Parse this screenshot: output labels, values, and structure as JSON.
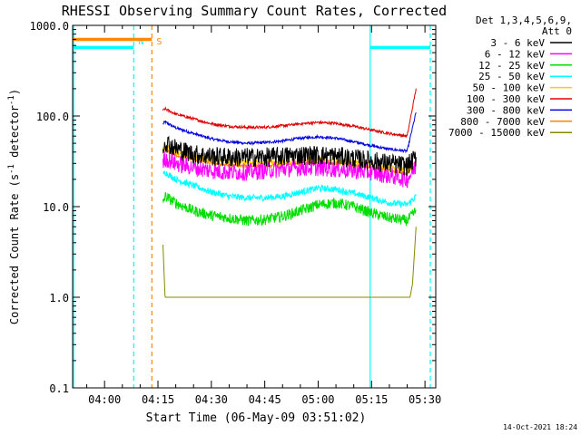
{
  "chart_data": {
    "type": "line",
    "title": "RHESSI Observing Summary Count Rates, Corrected",
    "xlabel": "Start Time (06-May-09 03:51:02)",
    "ylabel_prefix": "Corrected Count Rate (s",
    "ylabel_sup": "-1",
    "ylabel_mid": " detector",
    "ylabel_sup2": "-1",
    "ylabel_suffix": ")",
    "yscale": "log",
    "ylim": [
      0.1,
      1000
    ],
    "xlim_minutes": [
      231.03,
      333.03
    ],
    "x_ticks": [
      {
        "label": "04:00",
        "minutes": 240
      },
      {
        "label": "04:15",
        "minutes": 255
      },
      {
        "label": "04:30",
        "minutes": 270
      },
      {
        "label": "04:45",
        "minutes": 285
      },
      {
        "label": "05:00",
        "minutes": 300
      },
      {
        "label": "05:15",
        "minutes": 315
      },
      {
        "label": "05:30",
        "minutes": 330
      }
    ],
    "y_ticks": [
      {
        "label": "0.1",
        "value": 0.1
      },
      {
        "label": "1.0",
        "value": 1
      },
      {
        "label": "10.0",
        "value": 10
      },
      {
        "label": "100.0",
        "value": 100
      },
      {
        "label": "1000.0",
        "value": 1000
      }
    ],
    "legend_header": [
      "Det 1,3,4,5,6,9,",
      "Att 0"
    ],
    "legend_position": "right",
    "series": [
      {
        "name": "3 - 6 keV",
        "color": "#000000",
        "noise": 0.18,
        "x": [
          256.4,
          257,
          260,
          265,
          270,
          275,
          280,
          285,
          290,
          295,
          300,
          305,
          310,
          315,
          320,
          325,
          327.5
        ],
        "y": [
          46,
          52,
          44,
          38,
          36,
          35,
          35,
          35,
          36,
          37,
          37,
          36,
          34,
          32,
          30,
          28,
          35
        ]
      },
      {
        "name": "6 - 12 keV",
        "color": "#ff00ff",
        "noise": 0.16,
        "x": [
          256.4,
          257,
          260,
          265,
          270,
          275,
          280,
          285,
          290,
          295,
          300,
          305,
          310,
          315,
          320,
          325,
          327.5
        ],
        "y": [
          30,
          34,
          30,
          27,
          25,
          24,
          24,
          25,
          26,
          27,
          27,
          26,
          25,
          24,
          22,
          20,
          28
        ]
      },
      {
        "name": "12 - 25 keV",
        "color": "#00dd00",
        "noise": 0.1,
        "x": [
          256.4,
          257,
          260,
          265,
          270,
          275,
          280,
          285,
          290,
          295,
          300,
          305,
          310,
          315,
          320,
          325,
          327.5
        ],
        "y": [
          11,
          13,
          11,
          9,
          8,
          7.5,
          7,
          7.2,
          7.8,
          9,
          10.5,
          11,
          10,
          8.5,
          7.5,
          7,
          9
        ]
      },
      {
        "name": "25 - 50 keV",
        "color": "#00ffff",
        "noise": 0.06,
        "x": [
          256.4,
          257,
          260,
          265,
          270,
          275,
          280,
          285,
          290,
          295,
          300,
          305,
          310,
          315,
          320,
          325,
          327.5
        ],
        "y": [
          22,
          24,
          20,
          17,
          14.5,
          13,
          12.5,
          12.5,
          13,
          14.5,
          16,
          15.5,
          14,
          12.5,
          11,
          10.5,
          13
        ]
      },
      {
        "name": "50 - 100 keV",
        "color": "#ffcc00",
        "noise": 0.05,
        "x": [
          256.4,
          257,
          260,
          265,
          270,
          275,
          280,
          285,
          290,
          295,
          300,
          305,
          310,
          315,
          320,
          325,
          327.5
        ],
        "y": [
          44,
          47,
          40,
          36,
          33,
          31.5,
          31,
          31,
          31,
          32,
          33,
          32,
          31,
          29,
          27,
          25,
          30
        ]
      },
      {
        "name": "100 - 300 keV",
        "color": "#dd0000",
        "noise": 0.025,
        "x": [
          256.4,
          257,
          260,
          265,
          270,
          275,
          280,
          285,
          290,
          295,
          300,
          305,
          310,
          315,
          320,
          325,
          327.5
        ],
        "y": [
          115,
          120,
          105,
          93,
          82,
          77,
          75,
          75,
          78,
          82,
          85,
          83,
          77,
          70,
          64,
          60,
          200
        ]
      },
      {
        "name": "300 - 800 keV",
        "color": "#0000dd",
        "noise": 0.025,
        "x": [
          256.4,
          257,
          260,
          265,
          270,
          275,
          280,
          285,
          290,
          295,
          300,
          305,
          310,
          315,
          320,
          325,
          327.5
        ],
        "y": [
          82,
          86,
          74,
          64,
          56,
          52,
          50,
          51,
          53,
          57,
          59,
          57,
          52,
          47,
          43,
          41,
          110
        ]
      },
      {
        "name": "800 - 7000 keV",
        "color": "#ff8800",
        "noise": 0.03,
        "x": [
          256.4,
          257,
          260,
          265,
          270,
          275,
          280,
          285,
          290,
          295,
          300,
          305,
          310,
          315,
          320,
          325,
          327.5
        ],
        "y": [
          40,
          43,
          37,
          33,
          30,
          28.5,
          28,
          28,
          29,
          30,
          31,
          30,
          28.5,
          27,
          25,
          23,
          32
        ]
      },
      {
        "name": "7000 - 15000 keV",
        "color": "#888800",
        "noise": 0.0,
        "x": [
          256.4,
          257,
          262,
          270,
          280,
          290,
          300,
          305,
          310,
          320,
          325.8,
          326.5,
          327.5
        ],
        "y": [
          3.8,
          1.0,
          1.0,
          1.0,
          1.0,
          1.0,
          1.0,
          1.0,
          1.0,
          1.0,
          1.0,
          1.4,
          6
        ]
      }
    ],
    "attenuator_bars": [
      {
        "x_start": 231.03,
        "x_end": 253.3,
        "value": 700,
        "color": "#ff8800"
      },
      {
        "x_start": 231.03,
        "x_end": 248.2,
        "value": 570,
        "color": "#00ffff"
      },
      {
        "x_start": 314.6,
        "x_end": 331.5,
        "value": 570,
        "color": "#00ffff"
      }
    ],
    "event_lines": [
      {
        "minutes": 231.3,
        "color": "#00ffff",
        "style": "solid"
      },
      {
        "minutes": 248.2,
        "color": "#00ffff",
        "style": "dashed",
        "label": "N"
      },
      {
        "minutes": 253.3,
        "color": "#ff8800",
        "style": "dashed",
        "label": "S"
      },
      {
        "minutes": 314.6,
        "color": "#00ffff",
        "style": "solid"
      },
      {
        "minutes": 331.5,
        "color": "#00ffff",
        "style": "dashed"
      }
    ]
  },
  "footer": {
    "timestamp": "14-Oct-2021 18:24"
  }
}
